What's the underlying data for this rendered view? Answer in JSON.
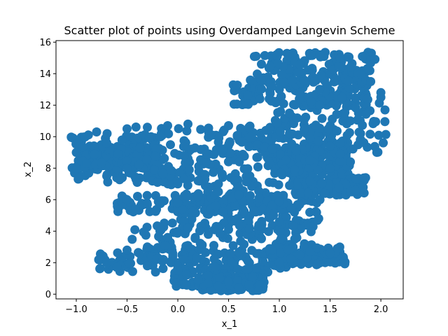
{
  "chart_data": {
    "type": "scatter",
    "title": "Scatter plot of points using Overdamped Langevin Scheme",
    "xlabel": "x_1",
    "ylabel": "x_2",
    "xlim": [
      -1.2,
      2.22
    ],
    "ylim": [
      -0.3,
      16.1
    ],
    "grid": false,
    "point_color": "#1f77b4",
    "xticks": [
      -1.0,
      -0.5,
      0.0,
      0.5,
      1.0,
      1.5,
      2.0
    ],
    "xtick_labels": [
      "−1.0",
      "−0.5",
      "0.0",
      "0.5",
      "1.0",
      "1.5",
      "2.0"
    ],
    "yticks": [
      0,
      2,
      4,
      6,
      8,
      10,
      12,
      14,
      16
    ],
    "ytick_labels": [
      "0",
      "2",
      "4",
      "6",
      "8",
      "10",
      "12",
      "14",
      "16"
    ],
    "series": [
      {
        "x": [
          -1.0,
          -0.9,
          -0.8,
          -0.7,
          -0.5,
          -0.3,
          -0.1,
          0.1,
          0.3,
          0.5,
          0.7,
          0.9,
          1.1,
          1.3,
          1.5,
          1.6,
          1.7,
          1.5,
          1.3,
          1.15,
          1.1,
          0.9,
          0.6,
          0.4,
          0.2,
          0.0,
          -0.2,
          -0.4,
          -0.5,
          -0.7,
          -0.5,
          -0.3,
          0.0,
          0.2,
          0.4,
          0.6,
          0.8,
          1.0,
          1.2,
          1.4,
          1.45,
          1.3,
          1.0,
          0.8,
          0.5,
          0.3,
          0.1,
          -0.1,
          -0.3,
          -0.5,
          -0.7,
          -0.6,
          -0.3,
          0.0,
          0.3,
          0.5,
          0.7,
          0.6,
          0.4,
          0.3,
          0.2,
          1.0,
          1.2,
          1.3,
          1.5,
          1.7,
          1.9,
          2.0,
          1.8,
          1.6,
          1.4,
          1.2,
          1.0,
          0.9,
          1.1,
          1.4,
          1.7,
          2.0,
          1.6,
          1.8,
          1.3,
          1.5,
          1.75
        ],
        "y": [
          9.0,
          8.3,
          10.3,
          9.6,
          10.5,
          10.6,
          10.7,
          10.8,
          10.4,
          10.7,
          10.6,
          10.5,
          10.2,
          9.9,
          9.4,
          8.9,
          8.4,
          7.8,
          7.2,
          7.9,
          6.9,
          7.1,
          6.8,
          7.0,
          7.2,
          7.0,
          7.1,
          7.1,
          8.0,
          7.5,
          6.0,
          5.7,
          5.8,
          6.2,
          6.5,
          6.3,
          6.1,
          5.9,
          5.7,
          6.0,
          6.4,
          5.2,
          4.6,
          4.3,
          4.1,
          3.8,
          4.2,
          3.6,
          3.0,
          2.8,
          2.0,
          1.7,
          1.8,
          1.5,
          1.2,
          0.8,
          0.6,
          0.4,
          0.5,
          0.7,
          0.9,
          2.0,
          2.5,
          2.7,
          2.6,
          6.5,
          13.5,
          12.5,
          14.0,
          15.0,
          15.2,
          14.6,
          13.0,
          12.4,
          11.5,
          12.0,
          11.0,
          12.8,
          9.6,
          10.2,
          8.5,
          8.0,
          6.6
        ]
      }
    ]
  }
}
